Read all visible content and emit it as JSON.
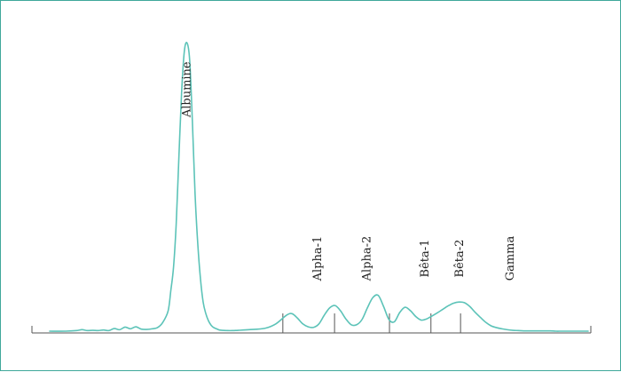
{
  "colors": {
    "curve": "#5cc3b8",
    "frame": "#3fa89a",
    "axis": "#555555",
    "text": "#222222"
  },
  "chart_data": {
    "type": "line",
    "title": "",
    "xlabel": "",
    "ylabel": "",
    "xlim": [
      0,
      100
    ],
    "ylim": [
      0,
      100
    ],
    "grid": false,
    "legend": "none",
    "series": [
      {
        "x": [
          0,
          3,
          5,
          6,
          7,
          8,
          9,
          10,
          11,
          12,
          13,
          14,
          15,
          16,
          17,
          18,
          19,
          20,
          21,
          22,
          22.5,
          23,
          23.5,
          24,
          24.5,
          25,
          25.5,
          26,
          26.5,
          27,
          27.5,
          28,
          28.5,
          29,
          29.5,
          30,
          30.5,
          31,
          31.5,
          32,
          33,
          34,
          35,
          37,
          40,
          42,
          44,
          45,
          46,
          47,
          48,
          49,
          50,
          51,
          52,
          53,
          54,
          55,
          56,
          57,
          58,
          59,
          60,
          61,
          62,
          63,
          64,
          65,
          66,
          67,
          68,
          69,
          70,
          71,
          72,
          73,
          74,
          75,
          76,
          77,
          78,
          79,
          80,
          81,
          82,
          83,
          84,
          85,
          86,
          87,
          88,
          89,
          90,
          91,
          92,
          93,
          94,
          95,
          96,
          97,
          98,
          100
        ],
        "y": [
          0,
          0,
          0.2,
          0.5,
          0.2,
          0.3,
          0.2,
          0.4,
          0.2,
          0.9,
          0.5,
          1.4,
          0.8,
          1.5,
          0.7,
          0.6,
          0.8,
          1.2,
          3,
          7,
          14,
          22,
          37,
          60,
          82,
          96,
          99,
          93,
          72,
          47,
          30,
          18,
          10,
          6,
          3.5,
          2,
          1.2,
          0.8,
          0.4,
          0.3,
          0.2,
          0.2,
          0.3,
          0.5,
          1,
          2.5,
          5.5,
          6,
          4.5,
          2.5,
          1.5,
          1.3,
          2.5,
          5.5,
          8,
          8.8,
          7,
          4.2,
          2.2,
          2.2,
          4,
          8,
          11.5,
          12.3,
          8.5,
          4,
          3.2,
          6.4,
          8.2,
          7,
          5,
          3.8,
          4.2,
          5.2,
          6.3,
          7.5,
          8.7,
          9.6,
          10,
          9.8,
          8.5,
          6.5,
          4.7,
          3,
          1.8,
          1.2,
          0.8,
          0.5,
          0.3,
          0.2,
          0.1,
          0.1,
          0.1,
          0.1,
          0.1,
          0.1,
          0,
          0,
          0,
          0,
          0,
          0
        ]
      }
    ],
    "peak_labels": [
      {
        "text": "Albumine",
        "x": 25.5,
        "y": 83
      },
      {
        "text": "Alpha-1",
        "x": 49.8,
        "y": 25
      },
      {
        "text": "Alpha-2",
        "x": 59,
        "y": 25
      },
      {
        "text": "Bêta-1",
        "x": 69.8,
        "y": 25
      },
      {
        "text": "Bêta-2",
        "x": 76.2,
        "y": 25
      },
      {
        "text": "Gamma",
        "x": 85.6,
        "y": 25
      }
    ],
    "dividers": [
      43.3,
      52.9,
      63.1,
      70.8,
      76.3
    ]
  }
}
